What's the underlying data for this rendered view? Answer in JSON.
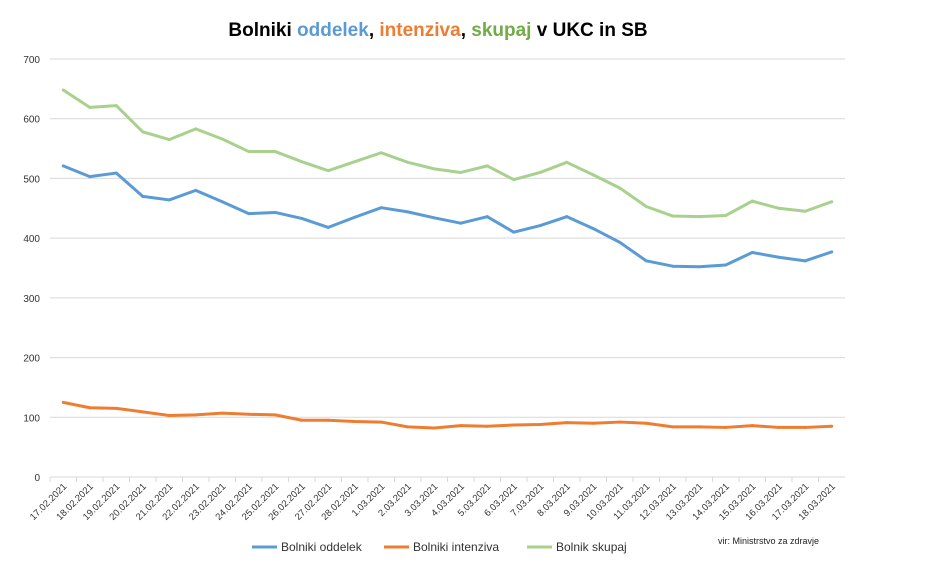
{
  "chart_data": {
    "type": "line",
    "title_parts": [
      {
        "text": "Bolniki ",
        "color": "#000000"
      },
      {
        "text": "oddelek",
        "color": "#5B9BD5"
      },
      {
        "text": ", ",
        "color": "#000000"
      },
      {
        "text": "intenziva",
        "color": "#ED7D31"
      },
      {
        "text": ", ",
        "color": "#000000"
      },
      {
        "text": "skupaj",
        "color": "#70AD47"
      },
      {
        "text": " v UKC in SB",
        "color": "#000000"
      }
    ],
    "x": [
      "17.02.2021",
      "18.02.2021",
      "19.02.2021",
      "20.02.2021",
      "21.02.2021",
      "22.02.2021",
      "23.02.2021",
      "24.02.2021",
      "25.02.2021",
      "26.02.2021",
      "27.02.2021",
      "28.02.2021",
      "1.03.2021",
      "2.03.2021",
      "3.03.2021",
      "4.03.2021",
      "5.03.2021",
      "6.03.2021",
      "7.03.2021",
      "8.03.2021",
      "9.03.2021",
      "10.03.2021",
      "11.03.2021",
      "12.03.2021",
      "13.03.2021",
      "14.03.2021",
      "15.03.2021",
      "16.03.2021",
      "17.03.2021",
      "18.03.2021"
    ],
    "yticks": [
      0,
      100,
      200,
      300,
      400,
      500,
      600,
      700
    ],
    "ylim": [
      0,
      700
    ],
    "grid": true,
    "legend": "bottom",
    "series": [
      {
        "name": "Bolniki oddelek",
        "color": "#5B9BD5",
        "values": [
          521,
          503,
          509,
          470,
          464,
          480,
          461,
          441,
          443,
          433,
          418,
          435,
          451,
          444,
          434,
          425,
          436,
          410,
          421,
          436,
          416,
          393,
          362,
          353,
          352,
          355,
          376,
          368,
          362,
          377
        ]
      },
      {
        "name": "Bolniki intenziva",
        "color": "#ED7D31",
        "values": [
          125,
          116,
          115,
          109,
          103,
          104,
          107,
          105,
          104,
          95,
          95,
          93,
          92,
          84,
          82,
          86,
          85,
          87,
          88,
          91,
          90,
          92,
          90,
          84,
          84,
          83,
          86,
          83,
          83,
          85
        ]
      },
      {
        "name": "Bolnik skupaj",
        "color": "#A9D18E",
        "values": [
          648,
          619,
          622,
          578,
          565,
          583,
          566,
          545,
          545,
          528,
          513,
          528,
          543,
          527,
          516,
          510,
          521,
          498,
          510,
          527,
          506,
          484,
          453,
          437,
          436,
          438,
          462,
          450,
          445,
          461
        ]
      }
    ],
    "source": "vir: Ministrstvo za zdravje"
  }
}
